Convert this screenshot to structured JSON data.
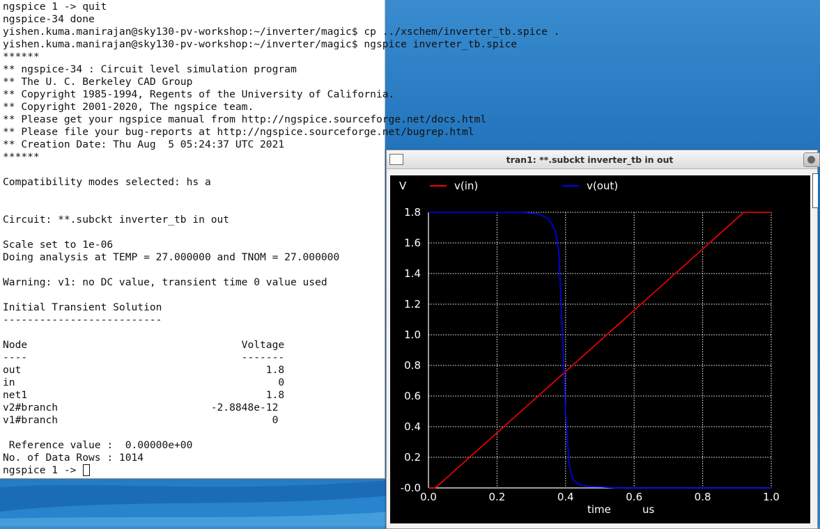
{
  "terminal": {
    "lines": [
      "ngspice 1 -> quit",
      "ngspice-34 done",
      "yishen.kuma.manirajan@sky130-pv-workshop:~/inverter/magic$ cp ../xschem/inverter_tb.spice .",
      "yishen.kuma.manirajan@sky130-pv-workshop:~/inverter/magic$ ngspice inverter_tb.spice",
      "******",
      "** ngspice-34 : Circuit level simulation program",
      "** The U. C. Berkeley CAD Group",
      "** Copyright 1985-1994, Regents of the University of California.",
      "** Copyright 2001-2020, The ngspice team.",
      "** Please get your ngspice manual from http://ngspice.sourceforge.net/docs.html",
      "** Please file your bug-reports at http://ngspice.sourceforge.net/bugrep.html",
      "** Creation Date: Thu Aug  5 05:24:37 UTC 2021",
      "******",
      "",
      "Compatibility modes selected: hs a",
      "",
      "",
      "Circuit: **.subckt inverter_tb in out",
      "",
      "Scale set to 1e-06",
      "Doing analysis at TEMP = 27.000000 and TNOM = 27.000000",
      "",
      "Warning: v1: no DC value, transient time 0 value used",
      "",
      "Initial Transient Solution",
      "--------------------------",
      "",
      "Node                                   Voltage",
      "----                                   -------",
      "out                                        1.8",
      "in                                           0",
      "net1                                       1.8",
      "v2#branch                         -2.8848e-12",
      "v1#branch                                   0",
      "",
      " Reference value :  0.00000e+00",
      "No. of Data Rows : 1014"
    ],
    "prompt": "ngspice 1 -> "
  },
  "plot_window": {
    "title": "tran1: **.subckt inverter_tb in out"
  },
  "chart_data": {
    "type": "line",
    "ylabel": "V",
    "xlabel": "time",
    "xunit": "us",
    "xlim": [
      0.0,
      1.0
    ],
    "ylim": [
      0.0,
      1.8
    ],
    "xticks": [
      0.0,
      0.2,
      0.4,
      0.6,
      0.8,
      1.0
    ],
    "xtick_labels": [
      "0.0",
      "0.2",
      "0.4",
      "0.6",
      "0.8",
      "1.0"
    ],
    "yticks": [
      0.0,
      0.2,
      0.4,
      0.6,
      0.8,
      1.0,
      1.2,
      1.4,
      1.6,
      1.8
    ],
    "ytick_labels": [
      "-0.0",
      "0.2",
      "0.4",
      "0.6",
      "0.8",
      "1.0",
      "1.2",
      "1.4",
      "1.6",
      "1.8"
    ],
    "grid": true,
    "legend_position": "top",
    "series": [
      {
        "name": "v(in)",
        "color": "#ff0000",
        "x": [
          0.0,
          0.02,
          0.1,
          0.2,
          0.3,
          0.4,
          0.5,
          0.6,
          0.7,
          0.8,
          0.92,
          1.0
        ],
        "y": [
          0.0,
          0.0,
          0.16,
          0.36,
          0.56,
          0.76,
          0.96,
          1.16,
          1.36,
          1.56,
          1.8,
          1.8
        ]
      },
      {
        "name": "v(out)",
        "color": "#0000ff",
        "x": [
          0.0,
          0.2,
          0.27,
          0.32,
          0.35,
          0.37,
          0.38,
          0.39,
          0.4,
          0.41,
          0.42,
          0.44,
          0.47,
          0.55,
          1.0
        ],
        "y": [
          1.8,
          1.8,
          1.8,
          1.79,
          1.76,
          1.68,
          1.55,
          1.05,
          0.5,
          0.16,
          0.06,
          0.02,
          0.01,
          0.0,
          0.0
        ]
      }
    ]
  }
}
